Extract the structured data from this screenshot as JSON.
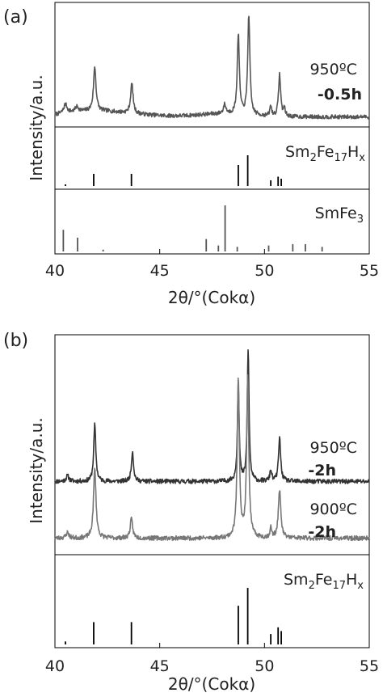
{
  "chart_data": [
    {
      "panel_label": "(a)",
      "type": "line",
      "xlabel": "2θ/°(Cokα)",
      "ylabel": "Intensity/a.u.",
      "xlim": [
        40,
        55
      ],
      "xticks": [
        40,
        45,
        50,
        55
      ],
      "grid": false,
      "legend": "none",
      "series": [
        {
          "label_lines": [
            "950ºC",
            "-0.5h"
          ],
          "color": "#555555",
          "baseline": 0.06,
          "noise": 0.02,
          "broad": [
            [
              41.5,
              0.04,
              1.2
            ],
            [
              43,
              0.03,
              1.5
            ],
            [
              48,
              0.03,
              1.2
            ]
          ],
          "peaks": [
            [
              40.5,
              0.09,
              0.1
            ],
            [
              41.05,
              0.05,
              0.1
            ],
            [
              41.9,
              0.44,
              0.07
            ],
            [
              43.67,
              0.3,
              0.07
            ],
            [
              48.1,
              0.09,
              0.07
            ],
            [
              48.75,
              0.8,
              0.06
            ],
            [
              49.25,
              1.0,
              0.06
            ],
            [
              50.3,
              0.1,
              0.05
            ],
            [
              50.72,
              0.42,
              0.06
            ],
            [
              50.95,
              0.08,
              0.05
            ]
          ]
        }
      ],
      "references": [
        {
          "label": "Sm2Fe17Hx",
          "label_parts": [
            "Sm",
            "2",
            "Fe",
            "17",
            "H",
            "x"
          ],
          "color": "#000000",
          "sticks": [
            [
              40.5,
              0.04
            ],
            [
              41.85,
              0.3
            ],
            [
              43.65,
              0.3
            ],
            [
              48.75,
              0.52
            ],
            [
              49.2,
              0.76
            ],
            [
              50.3,
              0.14
            ],
            [
              50.65,
              0.23
            ],
            [
              50.8,
              0.18
            ]
          ]
        },
        {
          "label": "SmFe3",
          "label_parts": [
            "SmFe",
            "3"
          ],
          "color": "#555555",
          "sticks": [
            [
              40.4,
              0.47
            ],
            [
              41.08,
              0.3
            ],
            [
              42.3,
              0.04
            ],
            [
              47.22,
              0.27
            ],
            [
              47.8,
              0.13
            ],
            [
              48.12,
              1.0
            ],
            [
              48.7,
              0.1
            ],
            [
              50.2,
              0.13
            ],
            [
              51.35,
              0.16
            ],
            [
              51.95,
              0.16
            ],
            [
              52.75,
              0.1
            ]
          ]
        }
      ]
    },
    {
      "panel_label": "(b)",
      "type": "line",
      "xlabel": "2θ/°(Cokα)",
      "ylabel": "Intensity/a.u.",
      "xlim": [
        40,
        55
      ],
      "xticks": [
        40,
        45,
        50,
        55
      ],
      "grid": false,
      "legend": "none",
      "series": [
        {
          "label_lines": [
            "950ºC",
            "-2h"
          ],
          "color": "#333333",
          "baseline": 0.37,
          "noise": 0.012,
          "broad": [],
          "peaks": [
            [
              40.6,
              0.03,
              0.08
            ],
            [
              41.9,
              0.3,
              0.06
            ],
            [
              43.7,
              0.16,
              0.06
            ],
            [
              48.75,
              0.52,
              0.05
            ],
            [
              49.22,
              0.7,
              0.05
            ],
            [
              50.3,
              0.06,
              0.05
            ],
            [
              50.72,
              0.23,
              0.06
            ]
          ]
        },
        {
          "label_lines": [
            "900ºC",
            "-2h"
          ],
          "color": "#777777",
          "baseline": 0.07,
          "noise": 0.012,
          "broad": [],
          "peaks": [
            [
              40.6,
              0.03,
              0.08
            ],
            [
              41.9,
              0.37,
              0.07
            ],
            [
              43.65,
              0.1,
              0.07
            ],
            [
              48.75,
              0.85,
              0.06
            ],
            [
              49.2,
              0.85,
              0.06
            ],
            [
              50.3,
              0.05,
              0.05
            ],
            [
              50.72,
              0.25,
              0.07
            ]
          ]
        }
      ],
      "references": [
        {
          "label": "Sm2Fe17Hx",
          "label_parts": [
            "Sm",
            "2",
            "Fe",
            "17",
            "H",
            "x"
          ],
          "color": "#000000",
          "sticks": [
            [
              40.5,
              0.04
            ],
            [
              41.85,
              0.3
            ],
            [
              43.65,
              0.3
            ],
            [
              48.75,
              0.52
            ],
            [
              49.2,
              0.76
            ],
            [
              50.3,
              0.14
            ],
            [
              50.65,
              0.23
            ],
            [
              50.8,
              0.18
            ]
          ]
        }
      ]
    }
  ]
}
